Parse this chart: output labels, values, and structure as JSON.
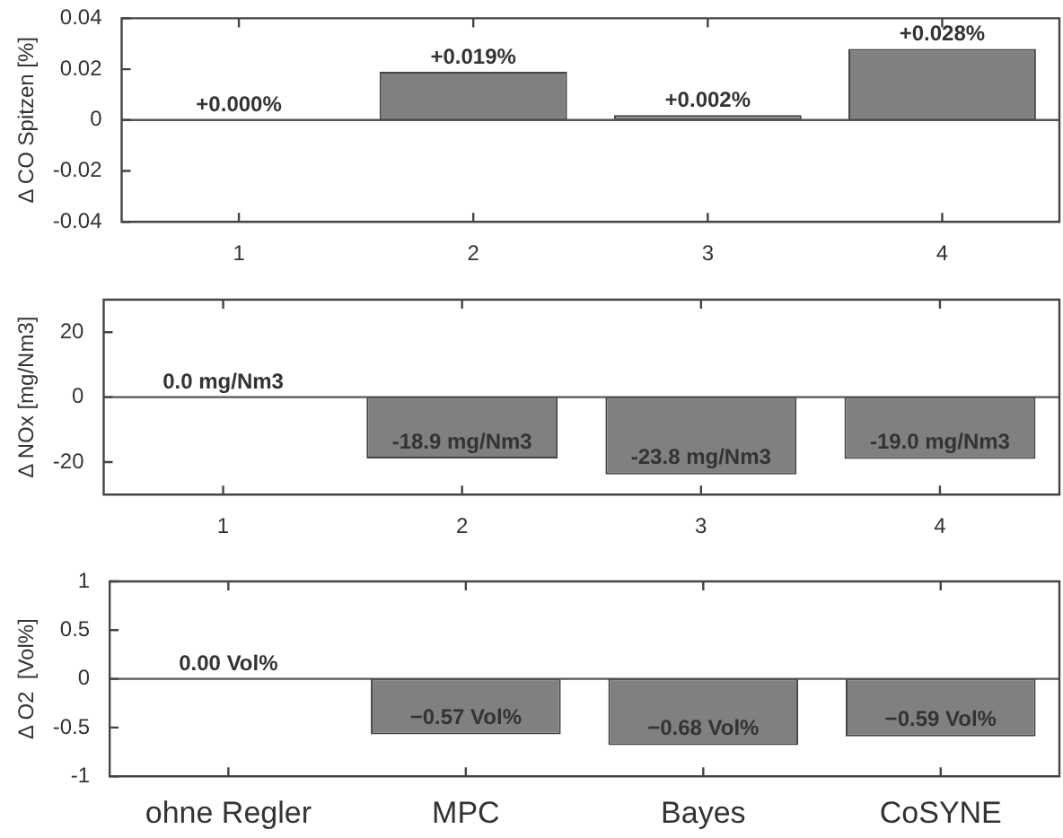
{
  "chart_data": [
    {
      "type": "bar",
      "ylabel": "Δ CO Spitzen [%]",
      "categories": [
        "1",
        "2",
        "3",
        "4"
      ],
      "values": [
        0,
        0.019,
        0.002,
        0.028
      ],
      "value_labels": [
        "+0.000%",
        "+0.019%",
        "+0.002%",
        "+0.028%"
      ],
      "color": "#808080",
      "ylim": [
        -0.04,
        0.04
      ],
      "yticks": [
        -0.04,
        -0.02,
        0,
        0.02,
        0.04
      ],
      "ref_lines": [
        {
          "axis": "y",
          "value": 0,
          "color": "#555555"
        }
      ]
    },
    {
      "type": "bar",
      "ylabel": "Δ NOx [mg/Nm3]",
      "categories": [
        "1",
        "2",
        "3",
        "4"
      ],
      "values": [
        0,
        -18.9,
        -23.8,
        -19.0
      ],
      "value_labels": [
        "0.0 mg/Nm3",
        "-18.9 mg/Nm3",
        "-23.8 mg/Nm3",
        "-19.0 mg/Nm3"
      ],
      "color": "#808080",
      "ylim": [
        -30,
        30
      ],
      "yticks": [
        -20,
        0,
        20
      ],
      "ref_lines": [
        {
          "axis": "y",
          "value": 0,
          "color": "#555555"
        }
      ]
    },
    {
      "type": "bar",
      "ylabel": "Δ O2  [Vol%]",
      "categories": [
        "ohne Regler",
        "MPC",
        "Bayes",
        "CoSYNE"
      ],
      "values": [
        0,
        -0.57,
        -0.68,
        -0.59
      ],
      "value_labels": [
        "0.00 Vol%",
        "−0.57 Vol%",
        "−0.68 Vol%",
        "−0.59 Vol%"
      ],
      "color": "#808080",
      "ylim": [
        -1,
        1
      ],
      "yticks": [
        -1,
        -0.5,
        0,
        0.5,
        1
      ],
      "ref_lines": [
        {
          "axis": "y",
          "value": 0,
          "color": "#555555"
        }
      ]
    }
  ]
}
